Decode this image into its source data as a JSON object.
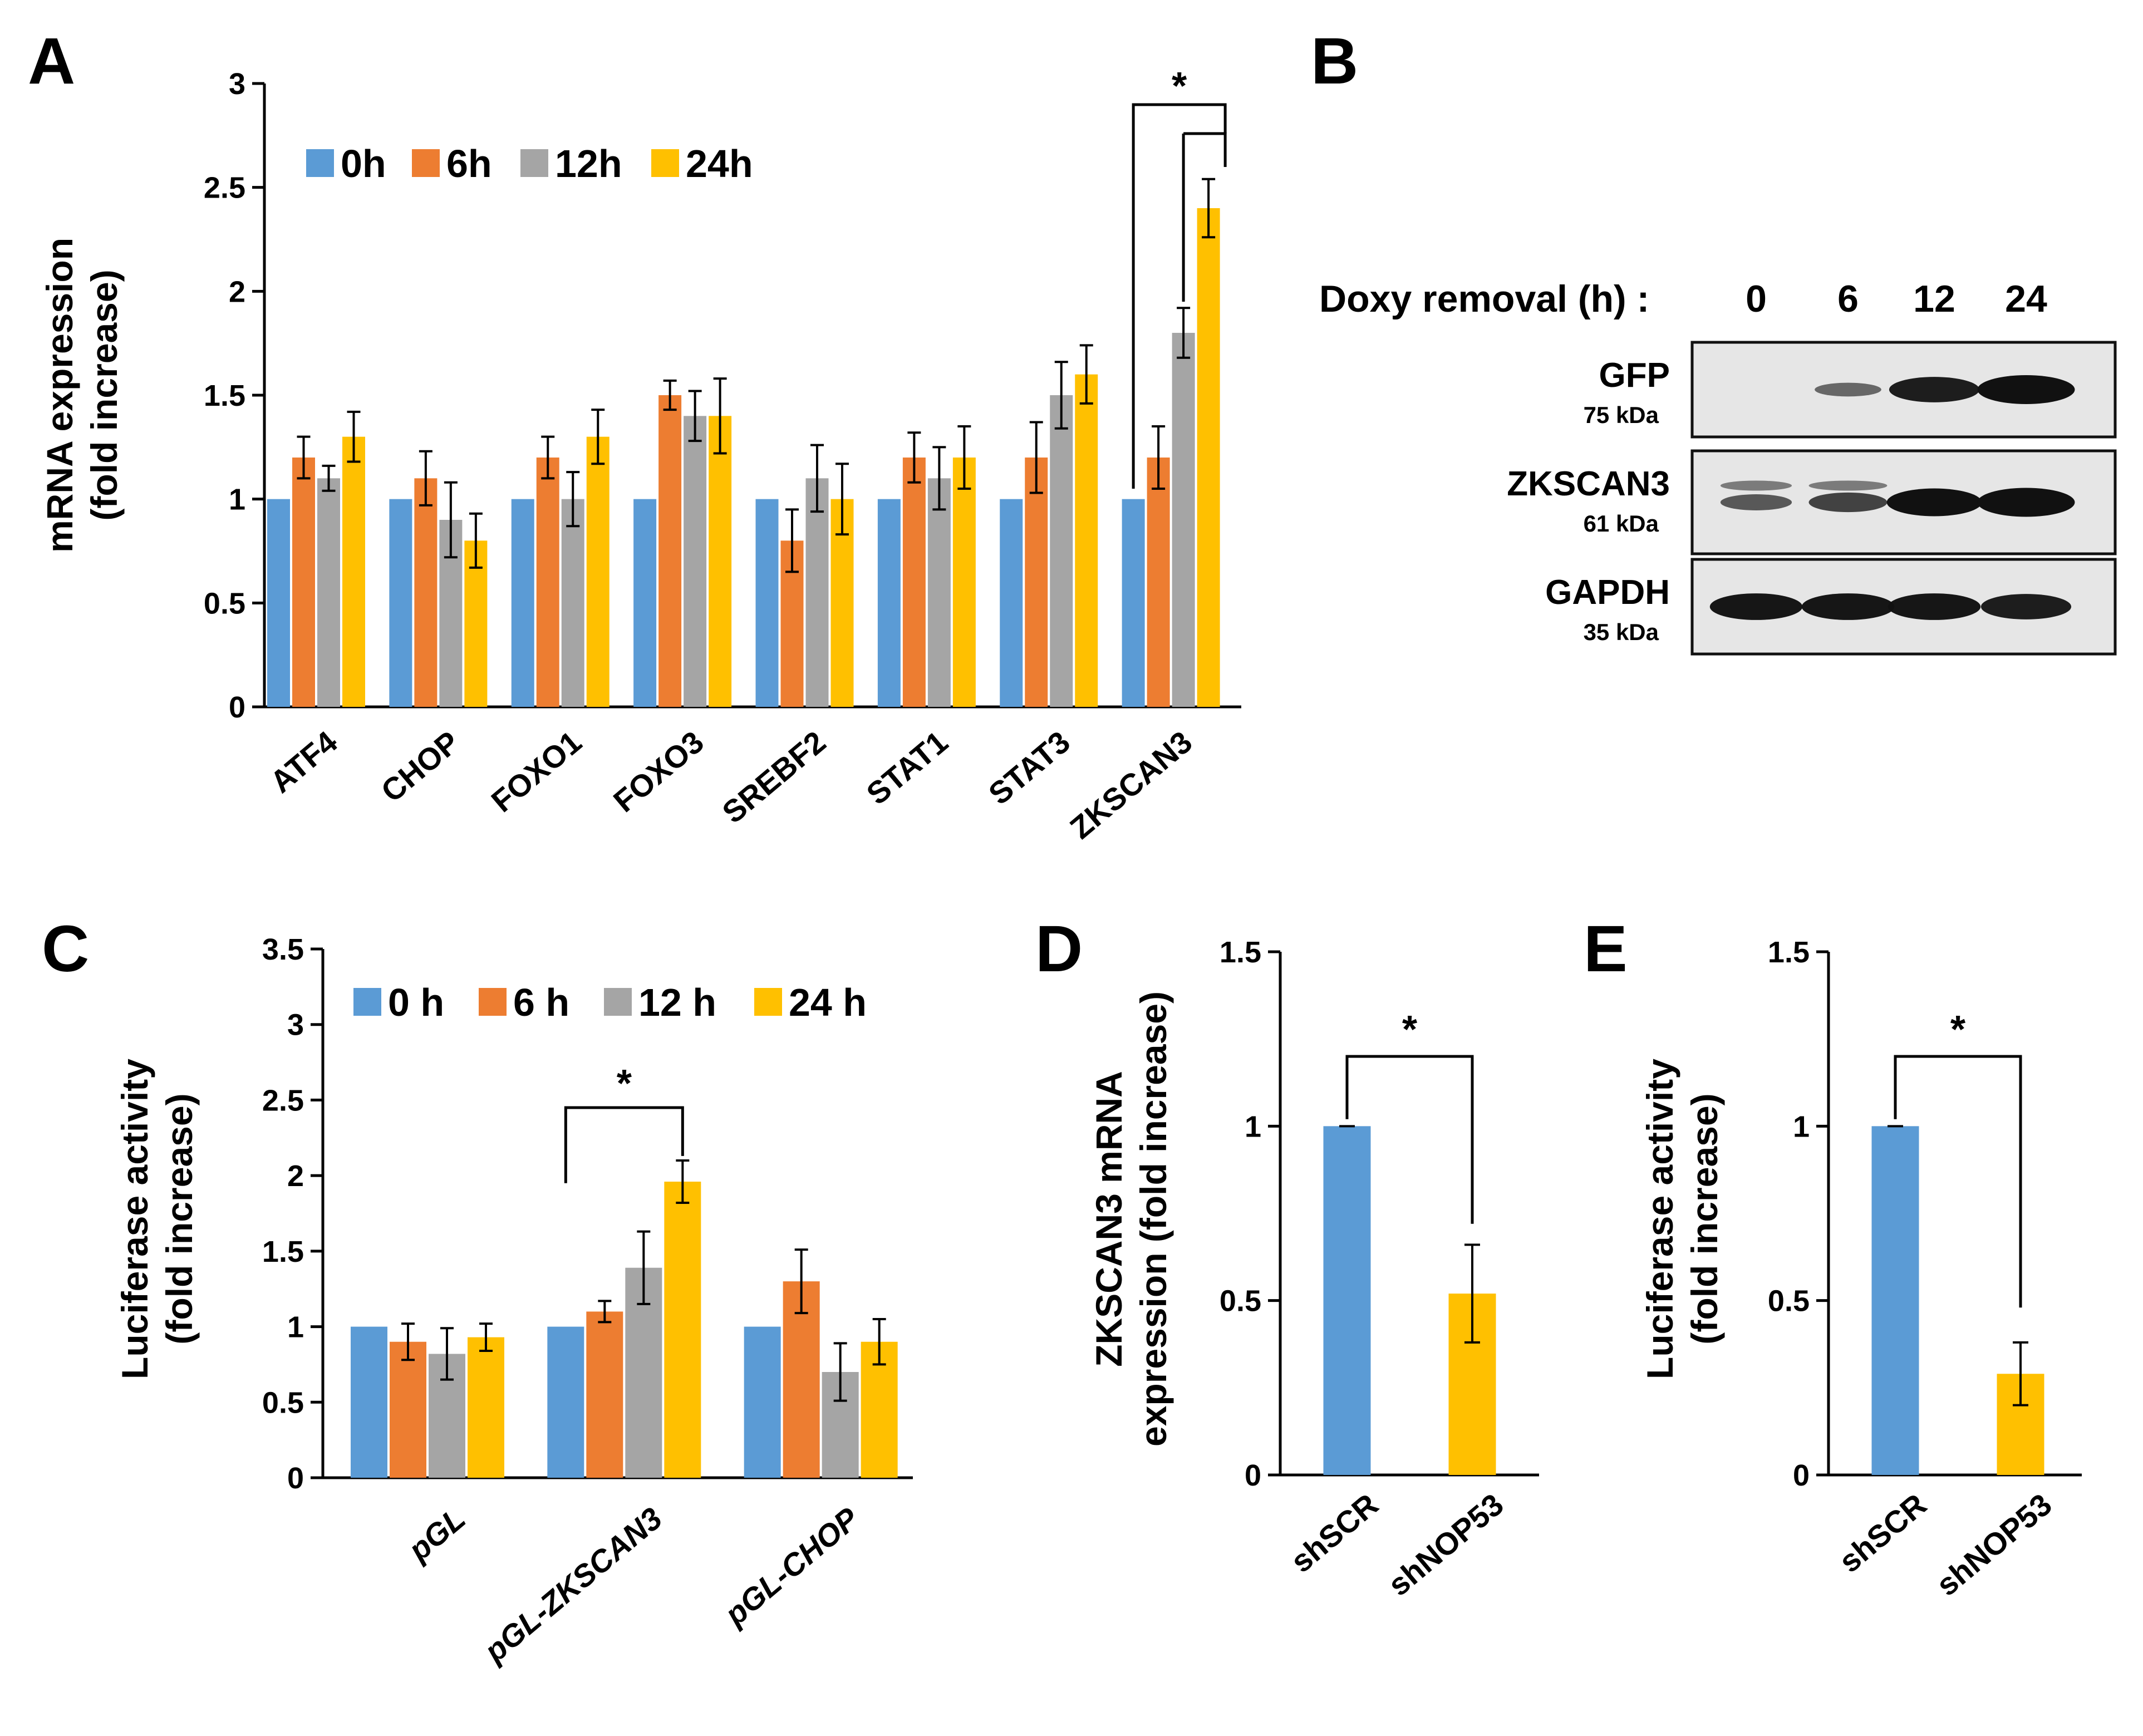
{
  "colors": {
    "0h": "#5b9bd5",
    "6h": "#ed7d31",
    "12h": "#a5a5a5",
    "24h": "#ffc000",
    "axis": "#000000"
  },
  "chart_data": [
    {
      "panel": "A",
      "type": "bar",
      "title": "",
      "xlabel": "",
      "ylabel_lines": [
        "mRNA expression",
        "(fold increase)"
      ],
      "ylim": [
        0,
        3
      ],
      "yticks": [
        "0",
        "0.5",
        "1",
        "1.5",
        "2",
        "2.5",
        "3"
      ],
      "categories": [
        "ATF4",
        "CHOP",
        "FOXO1",
        "FOXO3",
        "SREBF2",
        "STAT1",
        "STAT3",
        "ZKSCAN3"
      ],
      "series": [
        {
          "name": "0h",
          "color_key": "0h",
          "values": [
            1,
            1,
            1,
            1,
            1,
            1,
            1,
            1
          ],
          "errors": [
            0,
            0,
            0,
            0,
            0,
            0,
            0,
            0
          ]
        },
        {
          "name": "6h",
          "color_key": "6h",
          "values": [
            1.2,
            1.1,
            1.2,
            1.5,
            0.8,
            1.2,
            1.2,
            1.2
          ],
          "errors": [
            0.1,
            0.13,
            0.1,
            0.07,
            0.15,
            0.12,
            0.17,
            0.15
          ]
        },
        {
          "name": "12h",
          "color_key": "12h",
          "values": [
            1.1,
            0.9,
            1.0,
            1.4,
            1.1,
            1.1,
            1.5,
            1.8
          ],
          "errors": [
            0.06,
            0.18,
            0.13,
            0.12,
            0.16,
            0.15,
            0.16,
            0.12
          ]
        },
        {
          "name": "24h",
          "color_key": "24h",
          "values": [
            1.3,
            0.8,
            1.3,
            1.4,
            1.0,
            1.2,
            1.6,
            2.4
          ],
          "errors": [
            0.12,
            0.13,
            0.13,
            0.18,
            0.17,
            0.15,
            0.14,
            0.14
          ]
        }
      ],
      "legend": [
        "0h",
        "6h",
        "12h",
        "24h"
      ],
      "significance": [
        {
          "label": "*",
          "category": "ZKSCAN3"
        }
      ]
    },
    {
      "panel": "C",
      "type": "bar",
      "title": "",
      "xlabel": "",
      "ylabel_lines": [
        "Luciferase activity",
        "(fold increase)"
      ],
      "ylim": [
        0,
        3.5
      ],
      "yticks": [
        "0",
        "0.5",
        "1",
        "1.5",
        "2",
        "2.5",
        "3",
        "3.5"
      ],
      "categories": [
        "pGL",
        "pGL-ZKSCAN3",
        "pGL-CHOP"
      ],
      "series": [
        {
          "name": "0 h",
          "color_key": "0h",
          "values": [
            1,
            1,
            1
          ],
          "errors": [
            0,
            0,
            0
          ]
        },
        {
          "name": "6 h",
          "color_key": "6h",
          "values": [
            0.9,
            1.1,
            1.3
          ],
          "errors": [
            0.12,
            0.07,
            0.21
          ]
        },
        {
          "name": "12 h",
          "color_key": "12h",
          "values": [
            0.82,
            1.39,
            0.7
          ],
          "errors": [
            0.17,
            0.24,
            0.19
          ]
        },
        {
          "name": "24 h",
          "color_key": "24h",
          "values": [
            0.93,
            1.96,
            0.9
          ],
          "errors": [
            0.09,
            0.14,
            0.15
          ]
        }
      ],
      "legend": [
        "0 h",
        "6 h",
        "12 h",
        "24 h"
      ],
      "significance": [
        {
          "label": "*",
          "category": "pGL-ZKSCAN3"
        }
      ]
    },
    {
      "panel": "D",
      "type": "bar",
      "title": "",
      "xlabel": "",
      "ylabel_lines": [
        "ZKSCAN3 mRNA",
        "expression (fold increase)"
      ],
      "ylim": [
        0,
        1.5
      ],
      "yticks": [
        "0",
        "0.5",
        "1",
        "1.5"
      ],
      "categories": [
        "shSCR",
        "shNOP53"
      ],
      "values": [
        1.0,
        0.52
      ],
      "errors": [
        0,
        0.14
      ],
      "color_keys": [
        "0h",
        "24h"
      ],
      "significance": [
        {
          "label": "*",
          "between": [
            "shSCR",
            "shNOP53"
          ]
        }
      ]
    },
    {
      "panel": "E",
      "type": "bar",
      "title": "",
      "xlabel": "",
      "ylabel_lines": [
        "Luciferase activity",
        "(fold increase)"
      ],
      "ylim": [
        0,
        1.5
      ],
      "yticks": [
        "0",
        "0.5",
        "1",
        "1.5"
      ],
      "categories": [
        "shSCR",
        "shNOP53"
      ],
      "values": [
        1.0,
        0.29
      ],
      "errors": [
        0,
        0.09
      ],
      "color_keys": [
        "0h",
        "24h"
      ],
      "significance": [
        {
          "label": "*",
          "between": [
            "shSCR",
            "shNOP53"
          ]
        }
      ]
    }
  ],
  "panels": {
    "a": "A",
    "b": "B",
    "c": "C",
    "d": "D",
    "e": "E"
  },
  "western_blot": {
    "header_label": "Doxy removal (h) :",
    "timepoints": [
      "0",
      "6",
      "12",
      "24"
    ],
    "rows": [
      {
        "name": "GFP",
        "kda": "75 kDa",
        "intensities": [
          0.0,
          0.35,
          0.85,
          1.0
        ]
      },
      {
        "name": "ZKSCAN3",
        "kda": "61 kDa",
        "intensities": [
          0.45,
          0.6,
          0.95,
          1.0
        ]
      },
      {
        "name": "GAPDH",
        "kda": "35 kDa",
        "intensities": [
          0.9,
          0.9,
          0.9,
          0.85
        ]
      }
    ]
  }
}
